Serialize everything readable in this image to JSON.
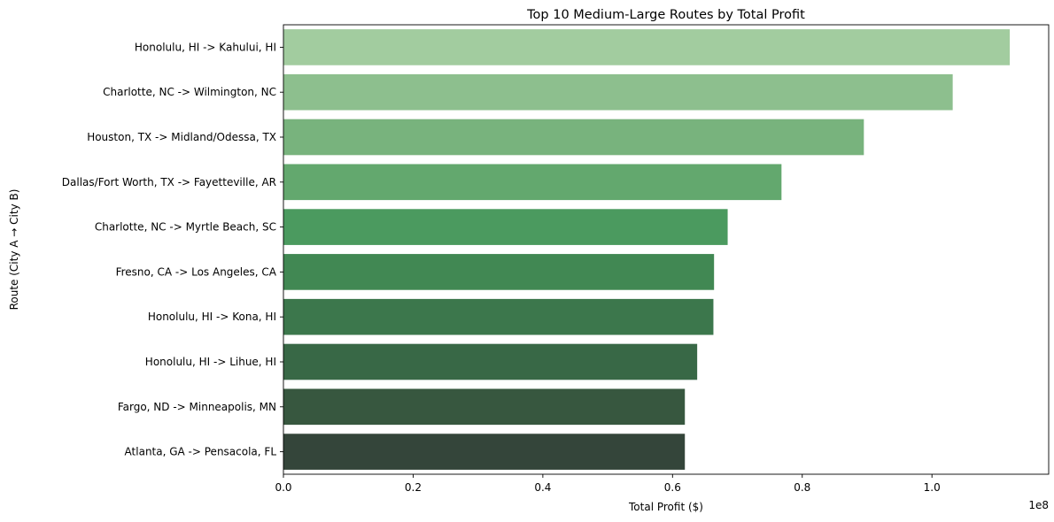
{
  "chart_data": {
    "type": "bar",
    "orientation": "horizontal",
    "title": "Top 10 Medium-Large Routes by Total Profit",
    "xlabel": "Total Profit ($)",
    "ylabel": "Route (City A → City B)",
    "x_offset_label": "1e8",
    "xlim": [
      0,
      1.18
    ],
    "xticks": [
      0.0,
      0.2,
      0.4,
      0.6,
      0.8,
      1.0
    ],
    "xtick_labels": [
      "0.0",
      "0.2",
      "0.4",
      "0.6",
      "0.8",
      "1.0"
    ],
    "grid": false,
    "categories": [
      "Honolulu, HI -> Kahului, HI",
      "Charlotte, NC -> Wilmington, NC",
      "Houston, TX -> Midland/Odessa, TX",
      "Dallas/Fort Worth, TX -> Fayetteville, AR",
      "Charlotte, NC -> Myrtle Beach, SC",
      "Fresno, CA -> Los Angeles, CA",
      "Honolulu, HI -> Kona, HI",
      "Honolulu, HI -> Lihue, HI",
      "Fargo, ND -> Minneapolis, MN",
      "Atlanta, GA -> Pensacola, FL"
    ],
    "values": [
      1.12,
      1.032,
      0.895,
      0.768,
      0.685,
      0.664,
      0.663,
      0.638,
      0.619,
      0.619
    ],
    "colors": [
      "#a2cc9f",
      "#8dbf8e",
      "#78b37d",
      "#63a86e",
      "#4b9a5f",
      "#418853",
      "#3c774c",
      "#386846",
      "#37573f",
      "#34453a"
    ]
  }
}
